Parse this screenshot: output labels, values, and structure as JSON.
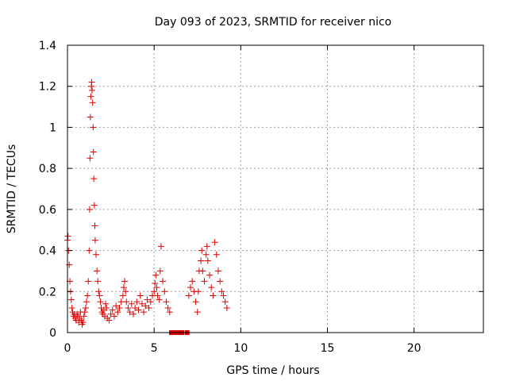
{
  "chart_data": {
    "type": "scatter",
    "title": "Day 093 of 2023, SRMTID for receiver nico",
    "xlabel": "GPS time / hours",
    "ylabel": "SRMTID / TECUs",
    "xlim": [
      0,
      24
    ],
    "ylim": [
      0,
      1.4
    ],
    "x_ticks": [
      0,
      5,
      10,
      15,
      20
    ],
    "x_tick_labels": [
      "0",
      "5",
      "10",
      "15",
      "20"
    ],
    "y_ticks": [
      0,
      0.2,
      0.4,
      0.6,
      0.8,
      1.0,
      1.2,
      1.4
    ],
    "y_tick_labels": [
      "0",
      "0.2",
      "0.4",
      "0.6",
      "0.8",
      "1",
      "1.2",
      "1.4"
    ],
    "grid": true,
    "marker": "+",
    "marker_color": "#dd0000",
    "series": [
      {
        "name": "SRMTID",
        "x": [
          0.0,
          0.03,
          0.06,
          0.1,
          0.14,
          0.18,
          0.22,
          0.26,
          0.3,
          0.35,
          0.4,
          0.45,
          0.5,
          0.55,
          0.6,
          0.65,
          0.7,
          0.75,
          0.8,
          0.85,
          0.9,
          0.95,
          1.0,
          1.05,
          1.1,
          1.15,
          1.2,
          1.25,
          1.28,
          1.3,
          1.32,
          1.35,
          1.38,
          1.4,
          1.42,
          1.45,
          1.48,
          1.5,
          1.52,
          1.55,
          1.58,
          1.6,
          1.65,
          1.7,
          1.75,
          1.8,
          1.85,
          1.9,
          1.95,
          2.0,
          2.05,
          2.1,
          2.15,
          2.2,
          2.25,
          2.3,
          2.4,
          2.5,
          2.6,
          2.7,
          2.8,
          2.9,
          3.0,
          3.1,
          3.2,
          3.25,
          3.3,
          3.35,
          3.4,
          3.5,
          3.6,
          3.7,
          3.8,
          3.9,
          4.0,
          4.1,
          4.2,
          4.3,
          4.4,
          4.5,
          4.6,
          4.7,
          4.8,
          4.9,
          5.0,
          5.05,
          5.1,
          5.15,
          5.2,
          5.3,
          5.35,
          5.4,
          5.5,
          5.6,
          5.7,
          5.8,
          5.9,
          6.0,
          6.2,
          6.4,
          6.6,
          6.9,
          7.0,
          7.1,
          7.2,
          7.3,
          7.4,
          7.5,
          7.55,
          7.6,
          7.7,
          7.75,
          7.8,
          7.9,
          8.0,
          8.05,
          8.1,
          8.2,
          8.3,
          8.4,
          8.5,
          8.6,
          8.7,
          8.8,
          8.9,
          9.0,
          9.1,
          9.2
        ],
        "y": [
          0.45,
          0.47,
          0.4,
          0.33,
          0.25,
          0.2,
          0.16,
          0.12,
          0.1,
          0.08,
          0.09,
          0.07,
          0.06,
          0.09,
          0.08,
          0.05,
          0.07,
          0.1,
          0.06,
          0.04,
          0.05,
          0.08,
          0.1,
          0.12,
          0.15,
          0.18,
          0.25,
          0.4,
          0.6,
          0.85,
          1.05,
          1.15,
          1.2,
          1.22,
          1.18,
          1.12,
          1.0,
          0.88,
          0.75,
          0.62,
          0.52,
          0.45,
          0.38,
          0.3,
          0.25,
          0.2,
          0.18,
          0.15,
          0.12,
          0.1,
          0.09,
          0.11,
          0.08,
          0.14,
          0.12,
          0.07,
          0.06,
          0.09,
          0.11,
          0.08,
          0.13,
          0.1,
          0.12,
          0.15,
          0.18,
          0.22,
          0.25,
          0.2,
          0.15,
          0.12,
          0.1,
          0.14,
          0.09,
          0.12,
          0.15,
          0.11,
          0.18,
          0.14,
          0.1,
          0.13,
          0.16,
          0.12,
          0.15,
          0.18,
          0.2,
          0.24,
          0.28,
          0.22,
          0.18,
          0.16,
          0.3,
          0.42,
          0.25,
          0.2,
          0.15,
          0.12,
          0.1,
          0.0,
          0.0,
          0.0,
          0.0,
          0.0,
          0.18,
          0.22,
          0.25,
          0.2,
          0.15,
          0.1,
          0.2,
          0.3,
          0.35,
          0.4,
          0.3,
          0.25,
          0.38,
          0.42,
          0.35,
          0.28,
          0.22,
          0.18,
          0.44,
          0.38,
          0.3,
          0.25,
          0.2,
          0.18,
          0.15,
          0.12
        ]
      }
    ]
  }
}
